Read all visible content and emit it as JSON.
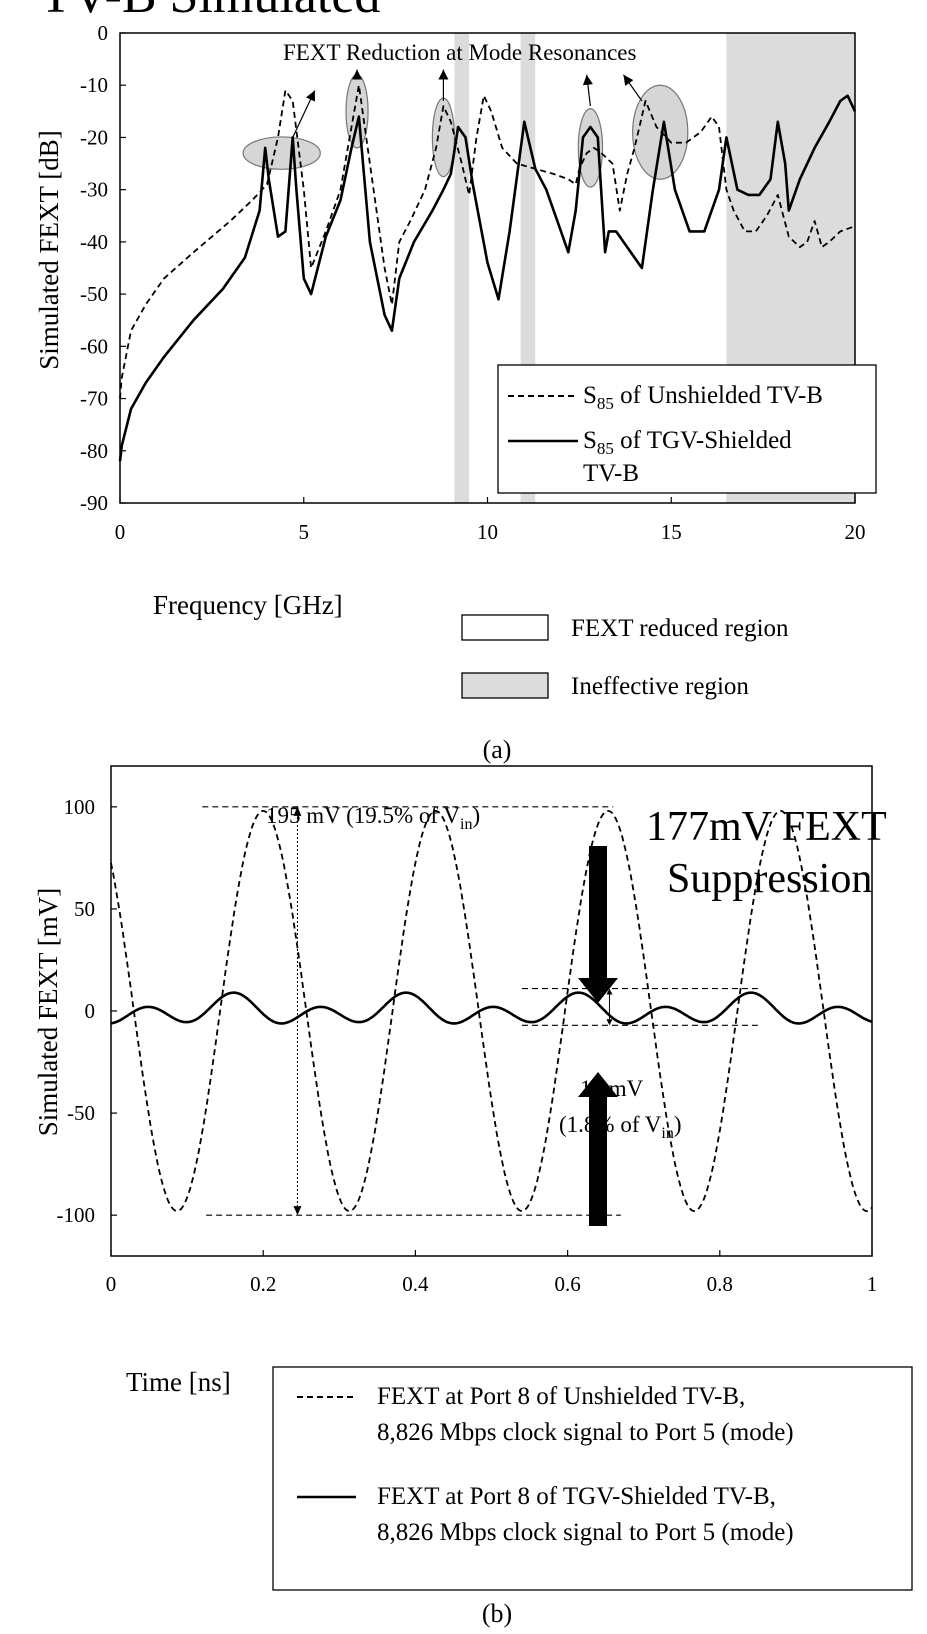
{
  "heading": "TV-B Simulated",
  "chart_data": [
    {
      "type": "line",
      "panel_caption": "(a)",
      "xlabel": "Frequency [GHz]",
      "ylabel": "Simulated FEXT [dB]",
      "xlim": [
        0,
        20
      ],
      "ylim": [
        -90,
        0
      ],
      "x_ticks": [
        "0",
        "5",
        "10",
        "15",
        "20"
      ],
      "y_ticks": [
        "0",
        "-10",
        "-20",
        "-30",
        "-40",
        "-50",
        "-60",
        "-70",
        "-80",
        "-90"
      ],
      "annotation": "FEXT Reduction at Mode Resonances",
      "series": [
        {
          "name": "S85 of Unshielded TV-B",
          "name_main": "S",
          "name_sub": "85",
          "name_rest": " of Unshielded TV-B",
          "style": "dashed",
          "x": [
            0,
            0.05,
            0.3,
            0.7,
            1.2,
            2,
            3,
            3.6,
            4.0,
            4.3,
            4.5,
            4.7,
            5.0,
            5.2,
            5.6,
            6.0,
            6.3,
            6.5,
            6.8,
            7.2,
            7.4,
            7.6,
            7.9,
            8.3,
            8.6,
            8.8,
            9.0,
            9.3,
            9.5,
            9.7,
            9.9,
            10.1,
            10.4,
            10.8,
            11.3,
            11.8,
            12.2,
            12.4,
            12.5,
            12.7,
            12.9,
            13.1,
            13.4,
            13.6,
            13.8,
            14.0,
            14.3,
            14.6,
            15.0,
            15.4,
            15.8,
            16.1,
            16.3,
            16.5,
            16.7,
            17.0,
            17.3,
            17.6,
            17.9,
            18.2,
            18.5,
            18.7,
            18.9,
            19.1,
            19.3,
            19.6,
            20.0
          ],
          "y": [
            -70,
            -66,
            -57,
            -52,
            -47,
            -42,
            -36,
            -32,
            -29,
            -20,
            -11,
            -13,
            -30,
            -45,
            -38,
            -30,
            -18,
            -10,
            -25,
            -45,
            -52,
            -40,
            -36,
            -30,
            -22,
            -14,
            -17,
            -25,
            -31,
            -20,
            -12,
            -15,
            -22,
            -25,
            -26,
            -27,
            -28,
            -29,
            -26,
            -23,
            -22,
            -23,
            -25,
            -34,
            -27,
            -22,
            -13,
            -18,
            -21,
            -21,
            -19,
            -16,
            -18,
            -30,
            -34,
            -38,
            -38,
            -35,
            -31,
            -39,
            -41,
            -40,
            -36,
            -41,
            -40,
            -38,
            -37
          ]
        },
        {
          "name": "S85 of TGV-Shielded TV-B",
          "name_main": "S",
          "name_sub": "85",
          "name_rest": " of TGV-Shielded",
          "name_line2": "TV-B",
          "style": "solid",
          "x": [
            0,
            0.05,
            0.3,
            0.7,
            1.2,
            2,
            2.8,
            3.4,
            3.8,
            3.95,
            4.05,
            4.3,
            4.5,
            4.7,
            4.8,
            5.0,
            5.2,
            5.6,
            6.0,
            6.3,
            6.5,
            6.8,
            7.2,
            7.4,
            7.6,
            8.0,
            8.5,
            8.8,
            9.0,
            9.2,
            9.4,
            9.6,
            10.0,
            10.3,
            10.6,
            11.0,
            11.3,
            11.6,
            12.0,
            12.2,
            12.4,
            12.6,
            12.8,
            13.0,
            13.2,
            13.3,
            13.5,
            13.9,
            14.2,
            14.5,
            14.8,
            15.1,
            15.5,
            15.9,
            16.3,
            16.5,
            16.8,
            17.1,
            17.4,
            17.7,
            17.9,
            18.1,
            18.2,
            18.5,
            18.9,
            19.3,
            19.6,
            19.8,
            20.0
          ],
          "y": [
            -82,
            -79,
            -72,
            -67,
            -62,
            -55,
            -49,
            -43,
            -34,
            -22,
            -28,
            -39,
            -38,
            -20,
            -30,
            -47,
            -50,
            -39,
            -32,
            -22,
            -16,
            -40,
            -54,
            -57,
            -47,
            -40,
            -34,
            -30,
            -27,
            -18,
            -20,
            -29,
            -44,
            -51,
            -38,
            -17,
            -26,
            -30,
            -38,
            -42,
            -34,
            -20,
            -18,
            -20,
            -42,
            -38,
            -38,
            -42,
            -45,
            -30,
            -17,
            -30,
            -38,
            -38,
            -30,
            -20,
            -30,
            -31,
            -31,
            -28,
            -17,
            -25,
            -34,
            -28,
            -22,
            -17,
            -13,
            -12,
            -15
          ]
        }
      ],
      "region_legend": [
        "FEXT reduced region",
        "Ineffective region"
      ],
      "ineffective_regions": [
        [
          9.1,
          9.5
        ],
        [
          10.9,
          11.3
        ],
        [
          16.5,
          20.0
        ]
      ],
      "ellipse_marks": [
        {
          "x": 4.4,
          "y": -23,
          "rx": 1.05,
          "ry": 3.1
        },
        {
          "x": 6.45,
          "y": -15,
          "rx": 0.3,
          "ry": 7
        },
        {
          "x": 8.8,
          "y": -20,
          "rx": 0.3,
          "ry": 7.5
        },
        {
          "x": 12.8,
          "y": -22,
          "rx": 0.33,
          "ry": 7.5
        },
        {
          "x": 14.7,
          "y": -19,
          "rx": 0.75,
          "ry": 9
        }
      ],
      "arrows": [
        {
          "from": [
            4.7,
            -20
          ],
          "to": [
            5.3,
            -11
          ]
        },
        {
          "from": [
            6.45,
            -8
          ],
          "to": [
            6.45,
            -7
          ]
        },
        {
          "from": [
            8.8,
            -13
          ],
          "to": [
            8.8,
            -7
          ]
        },
        {
          "from": [
            12.8,
            -14
          ],
          "to": [
            12.7,
            -8
          ]
        },
        {
          "from": [
            14.2,
            -13
          ],
          "to": [
            13.7,
            -8
          ]
        }
      ]
    },
    {
      "type": "line",
      "panel_caption": "(b)",
      "xlabel": "Time [ns]",
      "ylabel": "Simulated FEXT [mV]",
      "xlim": [
        0,
        1
      ],
      "ylim": [
        -120,
        120
      ],
      "x_ticks": [
        "0",
        "0.2",
        "0.4",
        "0.6",
        "0.8",
        "1"
      ],
      "y_ticks": [
        "100",
        "50",
        "0",
        "-50",
        "-100"
      ],
      "unshielded": {
        "amplitude_mV": 98,
        "period_ns": 0.2266,
        "peak_time_ns": 0.2
      },
      "shielded": {
        "components": [
          {
            "amplitude_mV": 5.5,
            "period_ns": 0.1133,
            "phase_ns": 0.0483
          },
          {
            "amplitude_mV": 3.5,
            "period_ns": 0.2266,
            "phase_ns": 0.1583
          }
        ]
      },
      "series": [
        {
          "name": "FEXT at Port 8 of Unshielded TV-B,",
          "name_line2": "8,826 Mbps clock signal to Port 5 (mode)",
          "style": "dashed"
        },
        {
          "name": "FEXT at Port 8 of TGV-Shielded TV-B,",
          "name_line2": "8,826 Mbps clock signal to Port 5 (mode)",
          "style": "solid"
        }
      ],
      "annotations": {
        "peak_to_peak": "195 mV (19.5% of V",
        "peak_to_peak_sub": "in",
        "peak_to_peak_close": ")",
        "suppression_line1": "177mV FEXT",
        "suppression_line2": "Suppression",
        "small_pp": "18 mV",
        "small_pp_pct": "(1.8% of V",
        "small_pp_sub": "in",
        "small_pp_close": ")"
      }
    }
  ]
}
